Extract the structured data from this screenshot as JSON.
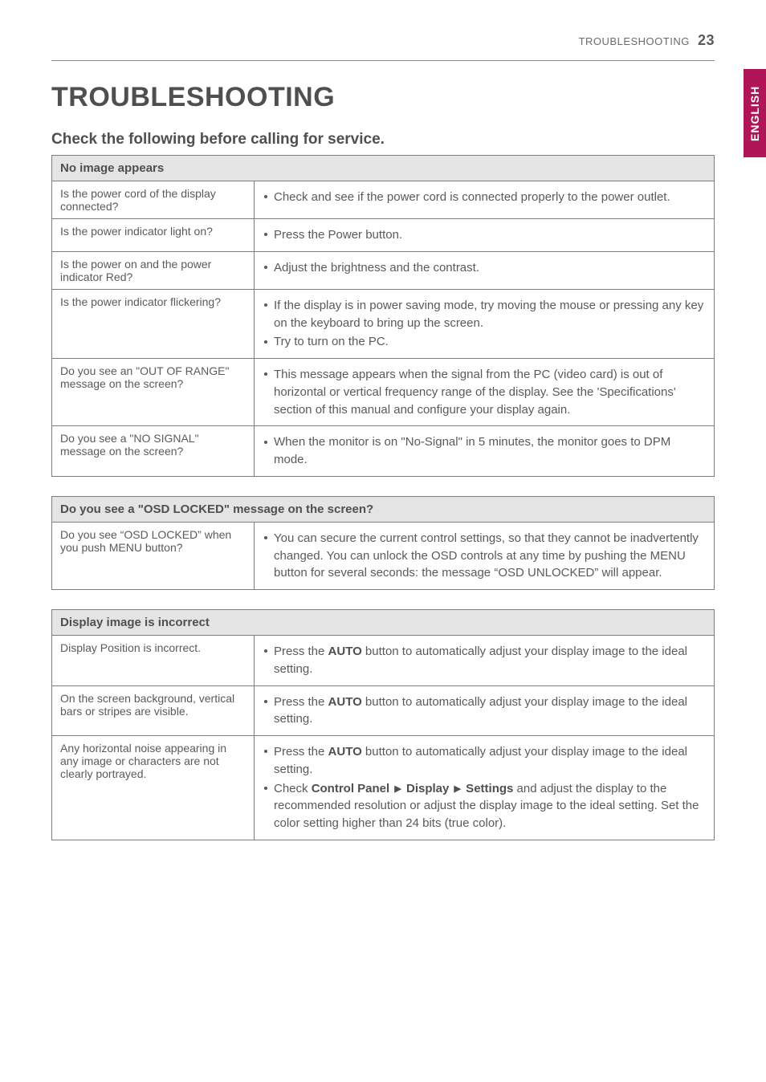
{
  "running_head": {
    "label": "TROUBLESHOOTING",
    "page": "23"
  },
  "side_tab": "ENGLISH",
  "title": "TROUBLESHOOTING",
  "subtitle": "Check the following before calling for service.",
  "table1": {
    "header": "No image appears",
    "rows": [
      {
        "q": "Is the power cord of the display connected?",
        "pts": [
          "Check and see if the power cord is connected properly to the power outlet."
        ]
      },
      {
        "q": "Is the power indicator light on?",
        "pts": [
          "Press the Power button."
        ]
      },
      {
        "q": "Is the power on and the power indicator Red?",
        "pts": [
          "Adjust the brightness and the contrast."
        ]
      },
      {
        "q": "Is the power indicator flickering?",
        "pts": [
          "If the display is in power saving mode, try moving the mouse or pressing any key on the keyboard to bring up the screen.",
          "Try to turn on the PC."
        ]
      },
      {
        "q": "Do you see an \"OUT OF RANGE\" message on the screen?",
        "pts": [
          "This message appears when the signal from the PC (video card) is out of horizontal or vertical frequency range of the display. See the 'Specifications' section of this manual and configure your display again."
        ]
      },
      {
        "q": "Do you see a \"NO SIGNAL\" message on the screen?",
        "pts": [
          "When the monitor is on \"No-Signal\" in 5 minutes, the monitor goes to DPM mode."
        ]
      }
    ]
  },
  "table2": {
    "header": "Do you see a \"OSD LOCKED\" message on the screen?",
    "rows": [
      {
        "q": "Do you see “OSD LOCKED” when you push MENU button?",
        "pts": [
          "You can secure the current control settings, so that they cannot be inadvertently changed. You can unlock the OSD controls at any time by pushing the MENU button for several seconds: the message “OSD UNLOCKED” will appear."
        ]
      }
    ]
  },
  "table3": {
    "header": "Display image is incorrect",
    "rows": [
      {
        "q": "Display Position is incorrect.",
        "pts_html": [
          "Press the <span class=\"b\">AUTO</span> button to automatically adjust your display image to the ideal setting."
        ]
      },
      {
        "q": "On the screen background, vertical bars or stripes are visible.",
        "pts_html": [
          "Press the <span class=\"b\">AUTO</span> button to automatically adjust your display image to the ideal setting."
        ]
      },
      {
        "q": "Any horizontal noise appearing in any image or characters are not clearly portrayed.",
        "pts_html": [
          "Press the <span class=\"b\">AUTO</span> button to automatically adjust your display image to the ideal setting.",
          "Check <span class=\"b\">Control Panel <span class=\"tri\"></span> Display <span class=\"tri\"></span> Settings</span> and adjust the display to the recommended resolution or adjust the display image to the ideal setting. Set the color setting higher than 24 bits  (true color)."
        ]
      }
    ]
  }
}
